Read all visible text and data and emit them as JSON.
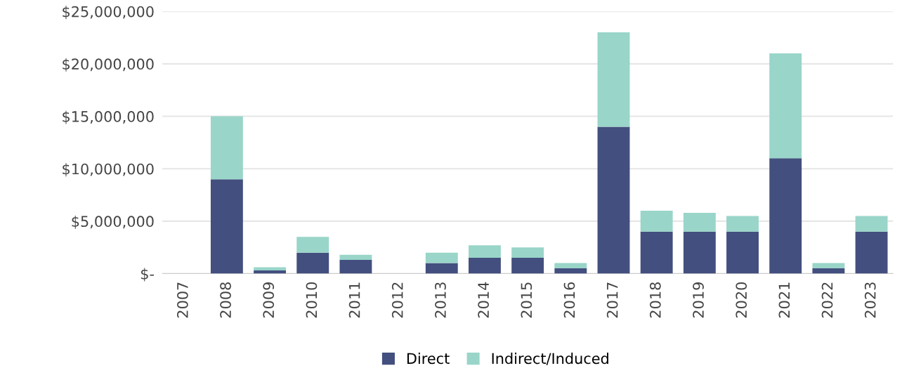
{
  "chart_data": {
    "type": "bar",
    "stacked": true,
    "categories": [
      "2007",
      "2008",
      "2009",
      "2010",
      "2011",
      "2012",
      "2013",
      "2014",
      "2015",
      "2016",
      "2017",
      "2018",
      "2019",
      "2020",
      "2021",
      "2022",
      "2023"
    ],
    "series": [
      {
        "name": "Direct",
        "color": "#434f7e",
        "values": [
          0,
          9000000,
          300000,
          2000000,
          1300000,
          0,
          1000000,
          1500000,
          1500000,
          500000,
          14000000,
          4000000,
          4000000,
          4000000,
          11000000,
          500000,
          4000000
        ]
      },
      {
        "name": "Indirect/Induced",
        "color": "#99d5c9",
        "values": [
          0,
          6000000,
          300000,
          1500000,
          500000,
          0,
          1000000,
          1200000,
          1000000,
          500000,
          9000000,
          2000000,
          1800000,
          1500000,
          10000000,
          500000,
          1500000
        ]
      }
    ],
    "ylim": [
      0,
      25000000
    ],
    "yticks": [
      {
        "value": 0,
        "label": "$-"
      },
      {
        "value": 5000000,
        "label": "$5,000,000"
      },
      {
        "value": 10000000,
        "label": "$10,000,000"
      },
      {
        "value": 15000000,
        "label": "$15,000,000"
      },
      {
        "value": 20000000,
        "label": "$20,000,000"
      },
      {
        "value": 25000000,
        "label": "$25,000,000"
      }
    ],
    "grid": "y",
    "legend": "bottom"
  }
}
